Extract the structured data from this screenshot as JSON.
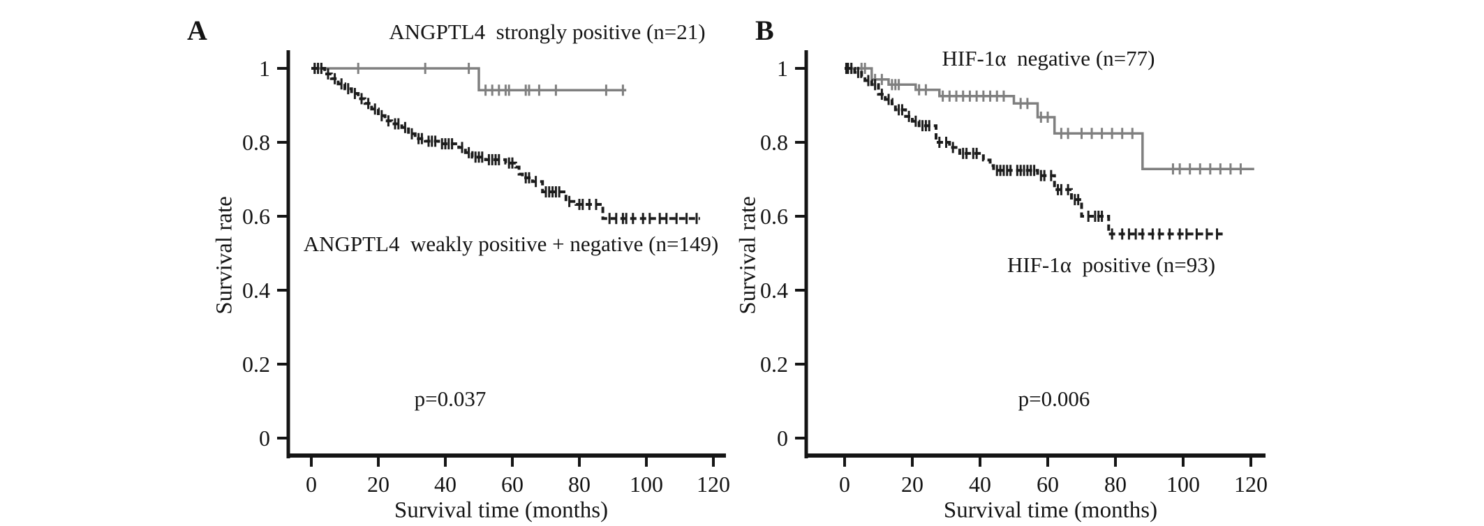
{
  "figure_type": "kaplan_meier_survival_figure",
  "chart_data": [
    {
      "type": "line",
      "panel_letter": "A",
      "title": "ANGPTL4  strongly positive (n=21)",
      "annotation": "p=0.037",
      "xlabel": "Survival time (months)",
      "ylabel": "Survival rate",
      "xticks": [
        0,
        20,
        40,
        60,
        80,
        100,
        120
      ],
      "yticks": [
        "1",
        "0.8",
        "0.6",
        "0.4",
        "0.2",
        "0"
      ],
      "ytick_values": [
        1,
        0.8,
        0.6,
        0.4,
        0.2,
        0
      ],
      "xlim": [
        0,
        127
      ],
      "ylim": [
        0,
        1.05
      ],
      "grid": false,
      "legend_position": "in-plot text labels",
      "series": [
        {
          "name": "ANGPTL4  strongly positive (n=21)",
          "color": "#7f7f7f",
          "line_style": "solid",
          "steps": [
            [
              0,
              1
            ],
            [
              50,
              0.941
            ],
            [
              94,
              0.941
            ]
          ],
          "censor_months": [
            1,
            3,
            14,
            34,
            47,
            52,
            54,
            56,
            58,
            59,
            64,
            65,
            68,
            73,
            88,
            93
          ]
        },
        {
          "name": "ANGPTL4  weakly positive + negative (n=149)",
          "color": "#1c1c1c",
          "line_style": "dashed",
          "steps": [
            [
              0,
              1
            ],
            [
              4,
              0.985
            ],
            [
              6,
              0.972
            ],
            [
              8,
              0.958
            ],
            [
              10,
              0.945
            ],
            [
              12,
              0.932
            ],
            [
              14,
              0.918
            ],
            [
              16,
              0.905
            ],
            [
              18,
              0.89
            ],
            [
              20,
              0.872
            ],
            [
              22,
              0.858
            ],
            [
              24,
              0.85
            ],
            [
              27,
              0.84
            ],
            [
              29,
              0.823
            ],
            [
              31,
              0.81
            ],
            [
              34,
              0.803
            ],
            [
              38,
              0.796
            ],
            [
              44,
              0.786
            ],
            [
              46,
              0.772
            ],
            [
              48,
              0.76
            ],
            [
              52,
              0.753
            ],
            [
              58,
              0.744
            ],
            [
              61,
              0.733
            ],
            [
              62,
              0.714
            ],
            [
              63,
              0.704
            ],
            [
              66,
              0.694
            ],
            [
              69,
              0.666
            ],
            [
              76,
              0.64
            ],
            [
              79,
              0.632
            ],
            [
              87,
              0.594
            ],
            [
              116,
              0.594
            ]
          ],
          "censor_months": [
            1,
            2,
            3,
            5,
            7,
            9,
            11,
            13,
            15,
            17,
            19,
            21,
            23,
            25,
            26,
            28,
            30,
            32,
            33,
            35,
            36,
            37,
            39,
            40,
            41,
            42,
            45,
            47,
            49,
            50,
            51,
            53,
            54,
            55,
            56,
            59,
            60,
            64,
            65,
            67,
            70,
            71,
            72,
            73,
            74,
            77,
            80,
            81,
            83,
            85,
            89,
            91,
            93,
            94,
            96,
            99,
            101,
            104,
            106,
            109,
            112,
            115
          ]
        }
      ]
    },
    {
      "type": "line",
      "panel_letter": "B",
      "title": "HIF-1α  negative (n=77)",
      "annotation": "p=0.006",
      "xlabel": "Survival time (months)",
      "ylabel": "Survival rate",
      "xticks": [
        0,
        20,
        40,
        60,
        80,
        100,
        120
      ],
      "yticks": [
        "1",
        "0.8",
        "0.6",
        "0.4",
        "0.2",
        "0"
      ],
      "ytick_values": [
        1,
        0.8,
        0.6,
        0.4,
        0.2,
        0
      ],
      "xlim": [
        0,
        125
      ],
      "ylim": [
        0,
        1.05
      ],
      "grid": false,
      "legend_position": "in-plot text labels",
      "series": [
        {
          "name": "HIF-1α  negative (n=77)",
          "color": "#7f7f7f",
          "line_style": "solid",
          "steps": [
            [
              0,
              1
            ],
            [
              8,
              0.97
            ],
            [
              13,
              0.956
            ],
            [
              21,
              0.942
            ],
            [
              28,
              0.925
            ],
            [
              50,
              0.905
            ],
            [
              57,
              0.868
            ],
            [
              62,
              0.824
            ],
            [
              88,
              0.728
            ],
            [
              121,
              0.728
            ]
          ],
          "censor_months": [
            1,
            2,
            5,
            6,
            9,
            11,
            14,
            15,
            16,
            22,
            24,
            29,
            31,
            33,
            35,
            37,
            39,
            41,
            43,
            45,
            47,
            52,
            54,
            58,
            60,
            64,
            66,
            70,
            73,
            76,
            79,
            82,
            85,
            97,
            99,
            102,
            105,
            108,
            111,
            114,
            117
          ]
        },
        {
          "name": "HIF-1α  positive (n=93)",
          "color": "#1c1c1c",
          "line_style": "dashed",
          "steps": [
            [
              0,
              1
            ],
            [
              3,
              0.989
            ],
            [
              5,
              0.978
            ],
            [
              6,
              0.967
            ],
            [
              8,
              0.956
            ],
            [
              10,
              0.93
            ],
            [
              12,
              0.916
            ],
            [
              14,
              0.904
            ],
            [
              15,
              0.888
            ],
            [
              18,
              0.87
            ],
            [
              20,
              0.857
            ],
            [
              22,
              0.845
            ],
            [
              27,
              0.8
            ],
            [
              31,
              0.786
            ],
            [
              34,
              0.77
            ],
            [
              41,
              0.752
            ],
            [
              43,
              0.737
            ],
            [
              44,
              0.724
            ],
            [
              57,
              0.71
            ],
            [
              62,
              0.672
            ],
            [
              67,
              0.645
            ],
            [
              70,
              0.6
            ],
            [
              78,
              0.552
            ],
            [
              112,
              0.552
            ]
          ],
          "censor_months": [
            0.5,
            1,
            2,
            4,
            7,
            9,
            11,
            13,
            16,
            17,
            19,
            21,
            23,
            24,
            25,
            28,
            30,
            32,
            35,
            36,
            38,
            39,
            45,
            46,
            47,
            48,
            49,
            51,
            52,
            53,
            54,
            55,
            56,
            58,
            59,
            61,
            63,
            64,
            66,
            68,
            69,
            72,
            74,
            75,
            76,
            79,
            82,
            84,
            86,
            88,
            91,
            93,
            96,
            99,
            101,
            104,
            107,
            110
          ]
        }
      ]
    }
  ],
  "colors": {
    "background": "#ffffff",
    "axis": "#151515",
    "gray_curve": "#7f7f7f",
    "black_curve": "#1c1c1c"
  }
}
